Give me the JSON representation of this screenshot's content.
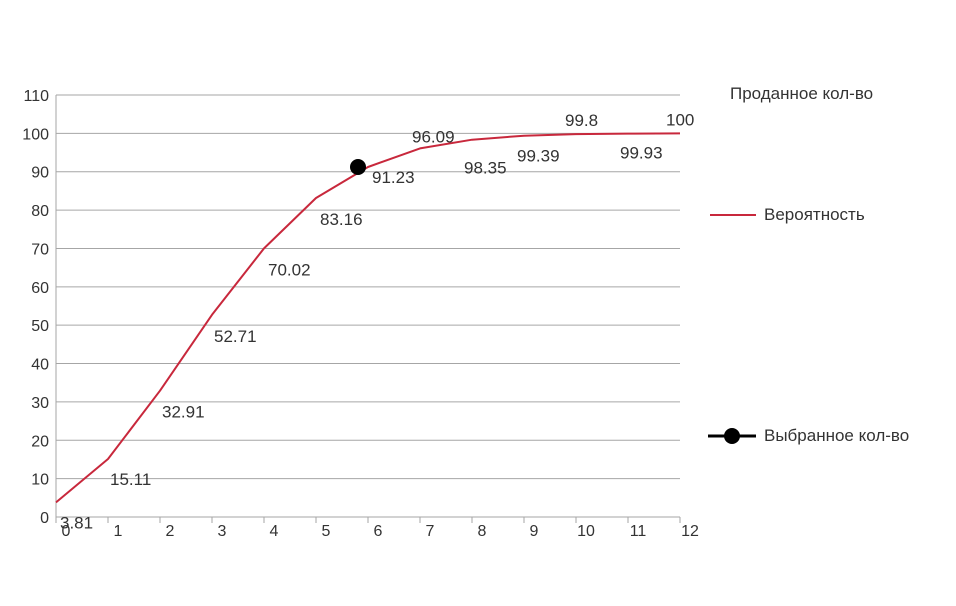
{
  "chart_data": {
    "type": "line",
    "x_label": "Проданное кол-во",
    "x": [
      0,
      1,
      2,
      3,
      4,
      5,
      6,
      7,
      8,
      9,
      10,
      11,
      12
    ],
    "xlim": [
      0,
      12
    ],
    "ylim": [
      0,
      110
    ],
    "y_ticks": [
      0,
      10,
      20,
      30,
      40,
      50,
      60,
      70,
      80,
      90,
      100,
      110
    ],
    "x_ticks": [
      0,
      1,
      2,
      3,
      4,
      5,
      6,
      7,
      8,
      9,
      10,
      11,
      12
    ],
    "grid": true,
    "legend_position": "right",
    "series": [
      {
        "name": "Вероятность",
        "color": "#c8283c",
        "values": [
          3.81,
          15.11,
          32.91,
          52.71,
          70.02,
          83.16,
          91.23,
          96.09,
          98.35,
          99.39,
          99.8,
          99.93,
          100
        ],
        "labels": [
          "3.81",
          "15.11",
          "32.91",
          "52.71",
          "70.02",
          "83.16",
          "91.23",
          "96.09",
          "98.35",
          "99.39",
          "99.8",
          "99.93",
          "100"
        ]
      }
    ],
    "selected": {
      "name": "Выбранное кол-во",
      "color": "#000000",
      "x": 6,
      "y": 91.23
    }
  }
}
